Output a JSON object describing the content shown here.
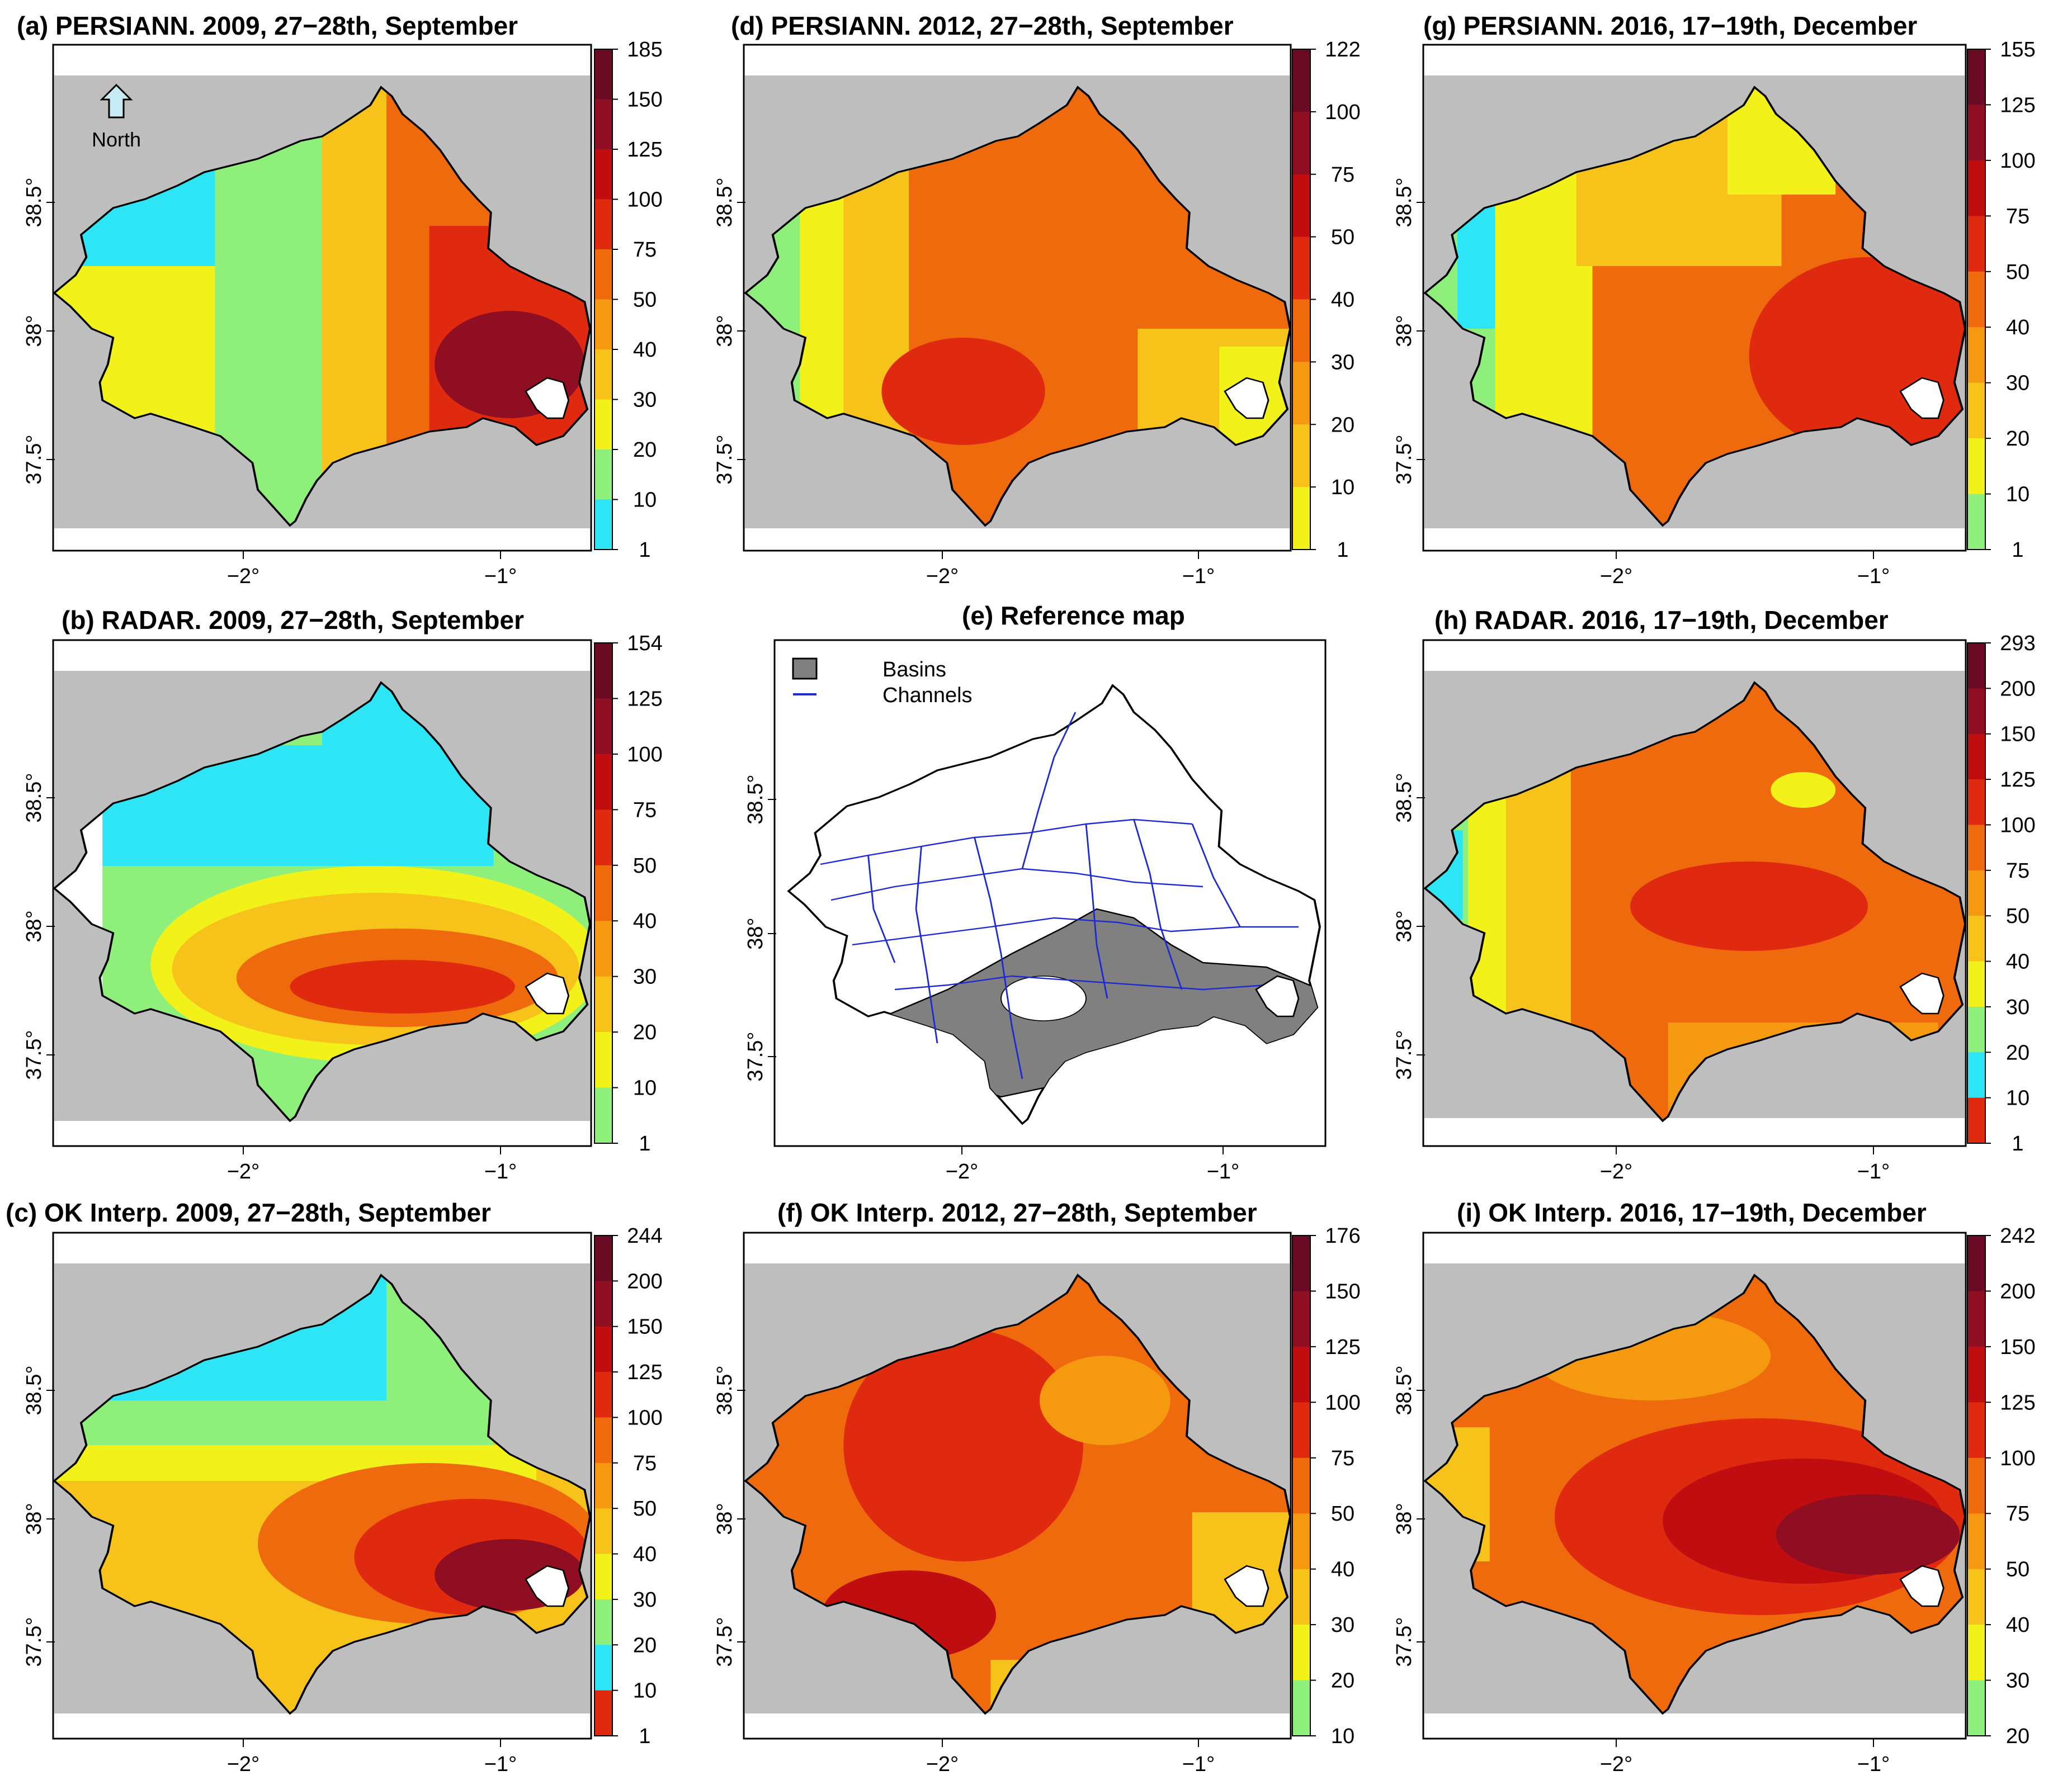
{
  "figure": {
    "north_label": "North",
    "lon_ticks": [
      "−2°",
      "−1°"
    ],
    "lat_ticks": [
      "37.5°",
      "38°",
      "38.5°"
    ],
    "ocean_color": "#bebebe",
    "colors": {
      "cyan": "#2ee5f5",
      "lightgreen": "#8ef07a",
      "yellow": "#f2f21a",
      "lightorange": "#f7c21a",
      "orange": "#f59a10",
      "darkorange": "#ef6a0c",
      "red": "#e02a10",
      "crimson": "#c00e10",
      "darkred": "#8f0e22",
      "maroon": "#6b0a24",
      "basin_gray": "#808080",
      "channel_blue": "#1f2ad0"
    }
  },
  "panels": [
    {
      "id": "a",
      "title": "(a) PERSIANN. 2009, 27−28th, September",
      "colorbar": [
        "185",
        "150",
        "125",
        "100",
        "75",
        "50",
        "40",
        "30",
        "20",
        "10",
        "1"
      ]
    },
    {
      "id": "d",
      "title": "(d) PERSIANN. 2012, 27−28th, September",
      "colorbar": [
        "122",
        "100",
        "75",
        "50",
        "40",
        "30",
        "20",
        "10",
        "1"
      ]
    },
    {
      "id": "g",
      "title": "(g) PERSIANN. 2016, 17−19th, December",
      "colorbar": [
        "155",
        "125",
        "100",
        "75",
        "50",
        "40",
        "30",
        "20",
        "10",
        "1"
      ]
    },
    {
      "id": "b",
      "title": "(b) RADAR. 2009, 27−28th, September",
      "colorbar": [
        "154",
        "125",
        "100",
        "75",
        "50",
        "40",
        "30",
        "20",
        "10",
        "1"
      ]
    },
    {
      "id": "e",
      "title": "(e) Reference map",
      "legend": [
        "Basins",
        "Channels"
      ]
    },
    {
      "id": "h",
      "title": "(h) RADAR. 2016, 17−19th, December",
      "colorbar": [
        "293",
        "200",
        "150",
        "125",
        "100",
        "75",
        "50",
        "40",
        "30",
        "20",
        "10",
        "1"
      ]
    },
    {
      "id": "c",
      "title": "(c) OK Interp. 2009, 27−28th, September",
      "colorbar": [
        "244",
        "200",
        "150",
        "125",
        "100",
        "75",
        "50",
        "40",
        "30",
        "20",
        "10",
        "1"
      ]
    },
    {
      "id": "f",
      "title": "(f) OK Interp. 2012, 27−28th, September",
      "colorbar": [
        "176",
        "150",
        "125",
        "100",
        "75",
        "50",
        "40",
        "30",
        "20",
        "10"
      ]
    },
    {
      "id": "i",
      "title": "(i) OK Interp. 2016, 17−19th, December",
      "colorbar": [
        "242",
        "200",
        "150",
        "125",
        "100",
        "75",
        "50",
        "40",
        "30",
        "20"
      ]
    }
  ]
}
